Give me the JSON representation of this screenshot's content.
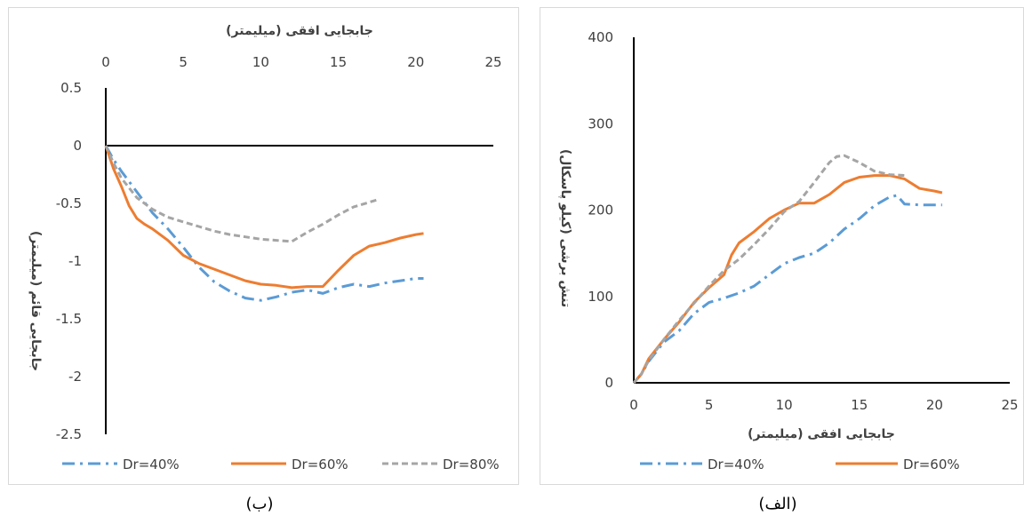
{
  "captions": {
    "left": "(ب)",
    "right": "(الف)"
  },
  "chart_data": [
    {
      "id": "b",
      "type": "line",
      "xlabel": "جابجایی افقی (میلیمتر)",
      "ylabel": "جابجایی قائم (میلیمتر)",
      "xlim": [
        0,
        25
      ],
      "ylim": [
        -2.5,
        0.5
      ],
      "x_ticks": [
        "0",
        "5",
        "10",
        "15",
        "20",
        "25"
      ],
      "y_ticks": [
        "0.5",
        "0",
        "-0.5",
        "-1",
        "-1.5",
        "-2",
        "-2.5"
      ],
      "legend_position": "bottom",
      "series": [
        {
          "name": "Dr=40%",
          "color": "#5b9bd5",
          "style": "dashdot",
          "x": [
            0,
            0.5,
            1,
            2,
            3,
            4,
            5,
            6,
            7,
            8,
            9,
            10,
            11,
            12,
            13,
            14,
            15,
            16,
            17,
            18,
            19,
            20,
            20.5
          ],
          "y": [
            0,
            -0.12,
            -0.22,
            -0.4,
            -0.58,
            -0.72,
            -0.88,
            -1.05,
            -1.18,
            -1.26,
            -1.32,
            -1.34,
            -1.31,
            -1.27,
            -1.25,
            -1.28,
            -1.23,
            -1.2,
            -1.22,
            -1.19,
            -1.17,
            -1.15,
            -1.15
          ]
        },
        {
          "name": "Dr=60%",
          "color": "#ed7d31",
          "style": "solid",
          "x": [
            0,
            0.5,
            1,
            1.5,
            2,
            2.5,
            3,
            4,
            5,
            6,
            7,
            8,
            9,
            10,
            11,
            12,
            13,
            14,
            14.5,
            15,
            16,
            17,
            18,
            19,
            20,
            20.5
          ],
          "y": [
            0,
            -0.2,
            -0.35,
            -0.52,
            -0.63,
            -0.68,
            -0.72,
            -0.82,
            -0.95,
            -1.02,
            -1.07,
            -1.12,
            -1.17,
            -1.2,
            -1.21,
            -1.23,
            -1.22,
            -1.22,
            -1.15,
            -1.08,
            -0.95,
            -0.87,
            -0.84,
            -0.8,
            -0.77,
            -0.76
          ]
        },
        {
          "name": "Dr=80%",
          "color": "#a5a5a5",
          "style": "dashed",
          "x": [
            0,
            0.5,
            1,
            2,
            3,
            4,
            5,
            6,
            7,
            8,
            9,
            10,
            11,
            12,
            13,
            14,
            15,
            16,
            17,
            17.5
          ],
          "y": [
            0,
            -0.15,
            -0.28,
            -0.45,
            -0.55,
            -0.62,
            -0.66,
            -0.7,
            -0.74,
            -0.77,
            -0.79,
            -0.81,
            -0.82,
            -0.83,
            -0.75,
            -0.68,
            -0.6,
            -0.53,
            -0.49,
            -0.47
          ]
        }
      ]
    },
    {
      "id": "a",
      "type": "line",
      "xlabel": "جابجایی افقی (میلیمتر)",
      "ylabel": "تنش برشی (کیلو پاسکال)",
      "xlim": [
        0,
        25
      ],
      "ylim": [
        0,
        400
      ],
      "x_ticks": [
        "0",
        "5",
        "10",
        "15",
        "20",
        "25"
      ],
      "y_ticks": [
        "0",
        "100",
        "200",
        "300",
        "400"
      ],
      "legend_position": "bottom",
      "series": [
        {
          "name": "Dr=40%",
          "color": "#5b9bd5",
          "style": "dashdot",
          "x": [
            0,
            0.5,
            1,
            2,
            3,
            4,
            5,
            6,
            7,
            8,
            9,
            10,
            11,
            12,
            13,
            14,
            15,
            16,
            17,
            17.5,
            18,
            19,
            20,
            20.5
          ],
          "y": [
            0,
            10,
            25,
            47,
            60,
            80,
            93,
            98,
            104,
            112,
            125,
            138,
            145,
            150,
            162,
            178,
            190,
            205,
            215,
            217,
            207,
            206,
            206,
            206
          ]
        },
        {
          "name": "Dr=60%",
          "color": "#ed7d31",
          "style": "solid",
          "x": [
            0,
            0.5,
            1,
            2,
            3,
            4,
            5,
            6,
            6.5,
            7,
            8,
            9,
            10,
            11,
            12,
            13,
            14,
            15,
            16,
            17,
            18,
            19,
            20,
            20.5
          ],
          "y": [
            0,
            10,
            28,
            50,
            70,
            93,
            110,
            125,
            148,
            162,
            175,
            190,
            200,
            208,
            208,
            218,
            232,
            238,
            240,
            240,
            236,
            225,
            222,
            220
          ]
        },
        {
          "name": "Dr=80%",
          "color": "#a5a5a5",
          "style": "dashed",
          "x": [
            0,
            0.5,
            1,
            2,
            3,
            4,
            5,
            6,
            7,
            8,
            9,
            10,
            11,
            12,
            13,
            13.5,
            14,
            15,
            16,
            17,
            18
          ],
          "y": [
            0,
            10,
            26,
            50,
            72,
            92,
            112,
            130,
            143,
            160,
            178,
            198,
            210,
            232,
            255,
            262,
            263,
            255,
            245,
            241,
            240
          ]
        }
      ]
    }
  ]
}
